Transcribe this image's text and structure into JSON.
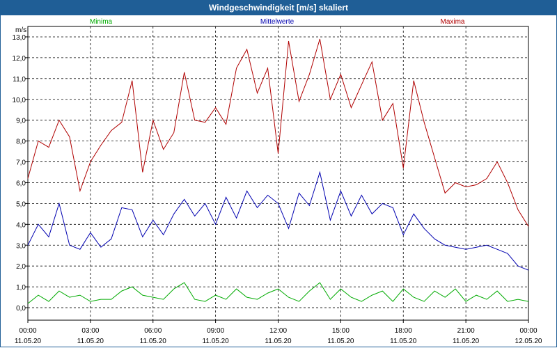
{
  "window": {
    "title": "Windgeschwindigkeit [m/s] skaliert"
  },
  "chart_data": {
    "type": "line",
    "title": "Windgeschwindigkeit [m/s] skaliert",
    "ylabel": "m/s",
    "xlabel": "",
    "ylim": [
      -0.6,
      13.5
    ],
    "xlim": [
      0,
      24
    ],
    "yticks": [
      "0,0",
      "1,0",
      "2,0",
      "3,0",
      "4,0",
      "5,0",
      "6,0",
      "7,0",
      "8,0",
      "9,0",
      "10,0",
      "11,0",
      "12,0",
      "13,0"
    ],
    "xticks": [
      {
        "time": "00:00",
        "date": "11.05.20"
      },
      {
        "time": "03:00",
        "date": "11.05.20"
      },
      {
        "time": "06:00",
        "date": "11.05.20"
      },
      {
        "time": "09:00",
        "date": "11.05.20"
      },
      {
        "time": "12:00",
        "date": "11.05.20"
      },
      {
        "time": "15:00",
        "date": "11.05.20"
      },
      {
        "time": "18:00",
        "date": "11.05.20"
      },
      {
        "time": "21:00",
        "date": "11.05.20"
      },
      {
        "time": "00:00",
        "date": "12.05.20"
      }
    ],
    "grid": true,
    "legend_position": "top",
    "series": [
      {
        "name": "Minima",
        "color": "#00aa00",
        "x": [
          0,
          0.5,
          1,
          1.5,
          2,
          2.5,
          3,
          3.5,
          4,
          4.5,
          5,
          5.5,
          6,
          6.5,
          7,
          7.5,
          8,
          8.5,
          9,
          9.5,
          10,
          10.5,
          11,
          11.5,
          12,
          12.5,
          13,
          13.5,
          14,
          14.5,
          15,
          15.5,
          16,
          16.5,
          17,
          17.5,
          18,
          18.5,
          19,
          19.5,
          20,
          20.5,
          21,
          21.5,
          22,
          22.5,
          23,
          23.5,
          24
        ],
        "values": [
          0.2,
          0.6,
          0.3,
          0.8,
          0.5,
          0.6,
          0.3,
          0.4,
          0.4,
          0.8,
          1.0,
          0.6,
          0.5,
          0.4,
          0.9,
          1.2,
          0.4,
          0.3,
          0.6,
          0.4,
          0.9,
          0.5,
          0.4,
          0.7,
          0.9,
          0.5,
          0.3,
          0.8,
          1.2,
          0.4,
          0.9,
          0.5,
          0.3,
          0.6,
          0.8,
          0.3,
          0.9,
          0.5,
          0.3,
          0.8,
          0.5,
          0.9,
          0.3,
          0.6,
          0.4,
          0.8,
          0.3,
          0.4,
          0.3
        ]
      },
      {
        "name": "Mittelwerte",
        "color": "#0000b0",
        "x": [
          0,
          0.5,
          1,
          1.5,
          2,
          2.5,
          3,
          3.5,
          4,
          4.5,
          5,
          5.5,
          6,
          6.5,
          7,
          7.5,
          8,
          8.5,
          9,
          9.5,
          10,
          10.5,
          11,
          11.5,
          12,
          12.5,
          13,
          13.5,
          14,
          14.5,
          15,
          15.5,
          16,
          16.5,
          17,
          17.5,
          18,
          18.5,
          19,
          19.5,
          20,
          20.5,
          21,
          21.5,
          22,
          22.5,
          23,
          23.5,
          24
        ],
        "values": [
          3.0,
          4.0,
          3.4,
          5.0,
          3.0,
          2.8,
          3.6,
          2.9,
          3.3,
          4.8,
          4.7,
          3.4,
          4.2,
          3.5,
          4.5,
          5.2,
          4.4,
          5.0,
          4.0,
          5.3,
          4.3,
          5.6,
          4.8,
          5.4,
          5.0,
          3.8,
          5.5,
          4.9,
          6.5,
          4.2,
          5.6,
          4.4,
          5.4,
          4.5,
          5.0,
          4.8,
          3.5,
          4.5,
          3.8,
          3.3,
          3.0,
          2.9,
          2.8,
          2.9,
          3.0,
          2.8,
          2.6,
          2.0,
          1.8
        ]
      },
      {
        "name": "Maxima",
        "color": "#b00000",
        "x": [
          0,
          0.5,
          1,
          1.5,
          2,
          2.5,
          3,
          3.5,
          4,
          4.5,
          5,
          5.5,
          6,
          6.5,
          7,
          7.5,
          8,
          8.5,
          9,
          9.5,
          10,
          10.5,
          11,
          11.5,
          12,
          12.5,
          13,
          13.5,
          14,
          14.5,
          15,
          15.5,
          16,
          16.5,
          17,
          17.5,
          18,
          18.5,
          19,
          19.5,
          20,
          20.5,
          21,
          21.5,
          22,
          22.5,
          23,
          23.5,
          24
        ],
        "values": [
          6.2,
          8.0,
          7.7,
          9.0,
          8.2,
          5.6,
          7.0,
          7.8,
          8.5,
          8.9,
          10.9,
          6.5,
          9.0,
          7.6,
          8.4,
          11.3,
          9.0,
          8.9,
          9.6,
          8.8,
          11.5,
          12.4,
          10.3,
          11.5,
          7.4,
          12.8,
          9.9,
          11.2,
          12.9,
          10.0,
          11.2,
          9.6,
          10.7,
          11.8,
          9.0,
          9.8,
          6.7,
          10.9,
          8.9,
          7.2,
          5.5,
          6.0,
          5.8,
          5.9,
          6.2,
          7.0,
          6.0,
          4.7,
          3.9
        ]
      }
    ]
  }
}
